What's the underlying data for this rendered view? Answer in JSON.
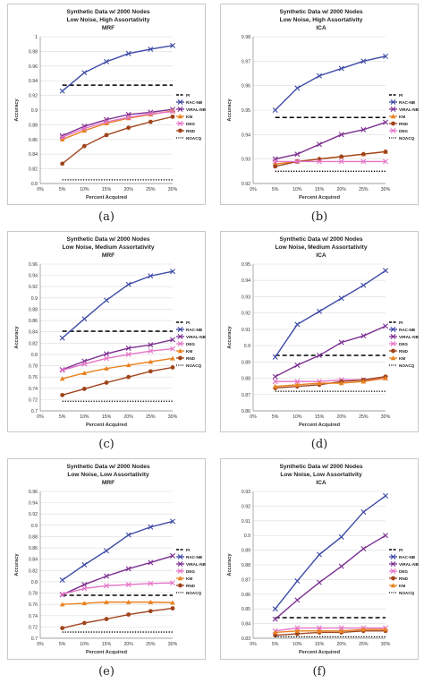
{
  "chart_data": [
    {
      "type": "line",
      "title_lines": [
        "Synthetic Data w/ 2000 Nodes",
        "Low Noise, High Assortativity",
        "MRF"
      ],
      "xlabel": "Percent Acquired",
      "ylabel": "Accuracy",
      "x_tick_labels": [
        "0%",
        "5%",
        "10%",
        "15%",
        "20%",
        "25%",
        "30%"
      ],
      "y_tick_labels": [
        "0.8",
        "0.82",
        "0.84",
        "0.86",
        "0.88",
        "0.9",
        "0.92",
        "0.94",
        "0.96",
        "0.98",
        "1"
      ],
      "ylim": [
        0.8,
        1.0
      ],
      "x": [
        5,
        10,
        15,
        20,
        25,
        30
      ],
      "caption": "(a)",
      "series": [
        {
          "name": "PI",
          "values": [
            0.934,
            0.934,
            0.934,
            0.934,
            0.934,
            0.934
          ],
          "color": "#000000",
          "style": "dash",
          "marker": "none"
        },
        {
          "name": "RAC-NB",
          "values": [
            0.926,
            0.951,
            0.966,
            0.977,
            0.983,
            0.988
          ],
          "color": "#3d49a6",
          "style": "solid",
          "marker": "x"
        },
        {
          "name": "VIRAL-NB",
          "values": [
            0.865,
            0.878,
            0.887,
            0.894,
            0.897,
            0.901
          ],
          "color": "#7b2f91",
          "style": "solid",
          "marker": "x"
        },
        {
          "name": "KM",
          "values": [
            0.86,
            0.872,
            0.882,
            0.889,
            0.894,
            0.899
          ],
          "color": "#e8821f",
          "style": "solid",
          "marker": "triangle"
        },
        {
          "name": "DEG",
          "values": [
            0.863,
            0.875,
            0.884,
            0.89,
            0.895,
            0.898
          ],
          "color": "#e574c6",
          "style": "solid",
          "marker": "x"
        },
        {
          "name": "RND",
          "values": [
            0.827,
            0.851,
            0.866,
            0.876,
            0.884,
            0.891
          ],
          "color": "#a0441c",
          "style": "solid",
          "marker": "circle"
        },
        {
          "name": "NOACQ",
          "values": [
            0.805,
            0.805,
            0.805,
            0.805,
            0.805,
            0.805
          ],
          "color": "#000000",
          "style": "dot",
          "marker": "none"
        }
      ]
    },
    {
      "type": "line",
      "title_lines": [
        "Synthetic Data w/ 2000 Nodes",
        "Low Noise, High Assortativity",
        "ICA"
      ],
      "xlabel": "Percent Acquired",
      "ylabel": "Accuracy",
      "x_tick_labels": [
        "0%",
        "5%",
        "10%",
        "15%",
        "20%",
        "25%",
        "30%"
      ],
      "y_tick_labels": [
        "0.92",
        "0.93",
        "0.94",
        "0.95",
        "0.96",
        "0.97",
        "0.98"
      ],
      "ylim": [
        0.92,
        0.98
      ],
      "x": [
        5,
        10,
        15,
        20,
        25,
        30
      ],
      "caption": "(b)",
      "series": [
        {
          "name": "PI",
          "values": [
            0.947,
            0.947,
            0.947,
            0.947,
            0.947,
            0.947
          ],
          "color": "#000000",
          "style": "dash",
          "marker": "none"
        },
        {
          "name": "RAC-NB",
          "values": [
            0.95,
            0.959,
            0.964,
            0.967,
            0.97,
            0.972
          ],
          "color": "#3d49a6",
          "style": "solid",
          "marker": "x"
        },
        {
          "name": "VIRAL-NB",
          "values": [
            0.93,
            0.932,
            0.936,
            0.94,
            0.942,
            0.945
          ],
          "color": "#7b2f91",
          "style": "solid",
          "marker": "x"
        },
        {
          "name": "KM",
          "values": [
            0.928,
            0.929,
            0.93,
            0.931,
            0.932,
            0.933
          ],
          "color": "#e8821f",
          "style": "solid",
          "marker": "triangle"
        },
        {
          "name": "RND",
          "values": [
            0.927,
            0.929,
            0.93,
            0.931,
            0.932,
            0.933
          ],
          "color": "#a0441c",
          "style": "solid",
          "marker": "circle"
        },
        {
          "name": "DEG",
          "values": [
            0.929,
            0.929,
            0.929,
            0.929,
            0.929,
            0.929
          ],
          "color": "#e574c6",
          "style": "solid",
          "marker": "x"
        },
        {
          "name": "NOACQ",
          "values": [
            0.925,
            0.925,
            0.925,
            0.925,
            0.925,
            0.925
          ],
          "color": "#000000",
          "style": "dot",
          "marker": "none"
        }
      ]
    },
    {
      "type": "line",
      "title_lines": [
        "Synthetic Data w/ 2000 Nodes",
        "Low Noise, Medium Assortativity",
        "MRF"
      ],
      "xlabel": "Percent Acquired",
      "ylabel": "Accuracy",
      "x_tick_labels": [
        "0%",
        "5%",
        "10%",
        "15%",
        "20%",
        "25%",
        "30%"
      ],
      "y_tick_labels": [
        "0.7",
        "0.72",
        "0.74",
        "0.76",
        "0.78",
        "0.8",
        "0.82",
        "0.84",
        "0.86",
        "0.88",
        "0.9",
        "0.92",
        "0.94",
        "0.96"
      ],
      "ylim": [
        0.7,
        0.96
      ],
      "x": [
        5,
        10,
        15,
        20,
        25,
        30
      ],
      "caption": "(c)",
      "series": [
        {
          "name": "PI",
          "values": [
            0.841,
            0.841,
            0.841,
            0.841,
            0.841,
            0.841
          ],
          "color": "#000000",
          "style": "dash",
          "marker": "none"
        },
        {
          "name": "RAC-NB",
          "values": [
            0.829,
            0.863,
            0.896,
            0.924,
            0.939,
            0.947
          ],
          "color": "#3d49a6",
          "style": "solid",
          "marker": "x"
        },
        {
          "name": "VIRAL-NB",
          "values": [
            0.773,
            0.788,
            0.801,
            0.811,
            0.817,
            0.826
          ],
          "color": "#7b2f91",
          "style": "solid",
          "marker": "x"
        },
        {
          "name": "DEG",
          "values": [
            0.772,
            0.783,
            0.793,
            0.8,
            0.806,
            0.81
          ],
          "color": "#e574c6",
          "style": "solid",
          "marker": "x"
        },
        {
          "name": "KM",
          "values": [
            0.757,
            0.767,
            0.775,
            0.781,
            0.787,
            0.793
          ],
          "color": "#e8821f",
          "style": "solid",
          "marker": "triangle"
        },
        {
          "name": "RND",
          "values": [
            0.728,
            0.739,
            0.75,
            0.76,
            0.77,
            0.777
          ],
          "color": "#a0441c",
          "style": "solid",
          "marker": "circle"
        },
        {
          "name": "NOACQ",
          "values": [
            0.717,
            0.717,
            0.717,
            0.717,
            0.717,
            0.717
          ],
          "color": "#000000",
          "style": "dot",
          "marker": "none"
        }
      ]
    },
    {
      "type": "line",
      "title_lines": [
        "Synthetic Data w/ 2000 Nodes",
        "Low Noise, Medium Assortativity",
        "ICA"
      ],
      "xlabel": "Percent Acquired",
      "ylabel": "Accuracy",
      "x_tick_labels": [
        "0%",
        "5%",
        "10%",
        "15%",
        "20%",
        "25%",
        "30%"
      ],
      "y_tick_labels": [
        "0.86",
        "0.87",
        "0.88",
        "0.89",
        "0.9",
        "0.91",
        "0.92",
        "0.93",
        "0.94",
        "0.95"
      ],
      "ylim": [
        0.86,
        0.95
      ],
      "x": [
        5,
        10,
        15,
        20,
        25,
        30
      ],
      "caption": "(d)",
      "series": [
        {
          "name": "PI",
          "values": [
            0.894,
            0.894,
            0.894,
            0.894,
            0.894,
            0.894
          ],
          "color": "#000000",
          "style": "dash",
          "marker": "none"
        },
        {
          "name": "RAC-NB",
          "values": [
            0.893,
            0.913,
            0.921,
            0.929,
            0.937,
            0.946
          ],
          "color": "#3d49a6",
          "style": "solid",
          "marker": "x"
        },
        {
          "name": "VIRAL-NB",
          "values": [
            0.881,
            0.888,
            0.894,
            0.902,
            0.906,
            0.912
          ],
          "color": "#7b2f91",
          "style": "solid",
          "marker": "x"
        },
        {
          "name": "DEG",
          "values": [
            0.878,
            0.878,
            0.878,
            0.879,
            0.879,
            0.88
          ],
          "color": "#e574c6",
          "style": "solid",
          "marker": "x"
        },
        {
          "name": "RND",
          "values": [
            0.874,
            0.875,
            0.876,
            0.878,
            0.879,
            0.881
          ],
          "color": "#a0441c",
          "style": "solid",
          "marker": "circle"
        },
        {
          "name": "KM",
          "values": [
            0.875,
            0.876,
            0.877,
            0.877,
            0.878,
            0.88
          ],
          "color": "#e8821f",
          "style": "solid",
          "marker": "triangle"
        },
        {
          "name": "NOACQ",
          "values": [
            0.872,
            0.872,
            0.872,
            0.872,
            0.872,
            0.872
          ],
          "color": "#000000",
          "style": "dot",
          "marker": "none"
        }
      ]
    },
    {
      "type": "line",
      "title_lines": [
        "Synthetic Data w/ 2000 Nodes",
        "Low Noise, Low Assortativity",
        "MRF"
      ],
      "xlabel": "Percent Acquired",
      "ylabel": "Accuracy",
      "x_tick_labels": [
        "0%",
        "5%",
        "10%",
        "15%",
        "20%",
        "25%",
        "30%"
      ],
      "y_tick_labels": [
        "0.7",
        "0.72",
        "0.74",
        "0.76",
        "0.78",
        "0.8",
        "0.82",
        "0.84",
        "0.86",
        "0.88",
        "0.9",
        "0.92",
        "0.94",
        "0.96"
      ],
      "ylim": [
        0.7,
        0.96
      ],
      "x": [
        5,
        10,
        15,
        20,
        25,
        30
      ],
      "caption": "(e)",
      "series": [
        {
          "name": "PI",
          "values": [
            0.776,
            0.776,
            0.776,
            0.776,
            0.776,
            0.776
          ],
          "color": "#000000",
          "style": "dash",
          "marker": "none"
        },
        {
          "name": "RAC-NB",
          "values": [
            0.803,
            0.83,
            0.855,
            0.883,
            0.897,
            0.907
          ],
          "color": "#3d49a6",
          "style": "solid",
          "marker": "x"
        },
        {
          "name": "VIRAL-NB",
          "values": [
            0.777,
            0.795,
            0.81,
            0.823,
            0.834,
            0.846
          ],
          "color": "#7b2f91",
          "style": "solid",
          "marker": "x"
        },
        {
          "name": "DEG",
          "values": [
            0.778,
            0.788,
            0.793,
            0.795,
            0.797,
            0.798
          ],
          "color": "#e574c6",
          "style": "solid",
          "marker": "x"
        },
        {
          "name": "KM",
          "values": [
            0.76,
            0.762,
            0.764,
            0.764,
            0.764,
            0.763
          ],
          "color": "#e8821f",
          "style": "solid",
          "marker": "triangle"
        },
        {
          "name": "RND",
          "values": [
            0.718,
            0.727,
            0.734,
            0.742,
            0.748,
            0.753
          ],
          "color": "#a0441c",
          "style": "solid",
          "marker": "circle"
        },
        {
          "name": "NOACQ",
          "values": [
            0.711,
            0.711,
            0.711,
            0.711,
            0.711,
            0.711
          ],
          "color": "#000000",
          "style": "dot",
          "marker": "none"
        }
      ]
    },
    {
      "type": "line",
      "title_lines": [
        "Synthetic Data w/ 2000 Nodes",
        "Low Noise, Low Assortativity",
        "ICA"
      ],
      "xlabel": "Percent Acquired",
      "ylabel": "Accuracy",
      "x_tick_labels": [
        "0%",
        "5%",
        "10%",
        "15%",
        "20%",
        "25%",
        "30%"
      ],
      "y_tick_labels": [
        "0.83",
        "0.84",
        "0.85",
        "0.86",
        "0.87",
        "0.88",
        "0.89",
        "0.9",
        "0.91",
        "0.92",
        "0.93"
      ],
      "ylim": [
        0.83,
        0.93
      ],
      "x": [
        5,
        10,
        15,
        20,
        25,
        30
      ],
      "caption": "(f)",
      "series": [
        {
          "name": "PI",
          "values": [
            0.844,
            0.844,
            0.844,
            0.844,
            0.844,
            0.844
          ],
          "color": "#000000",
          "style": "dash",
          "marker": "none"
        },
        {
          "name": "RAC-NB",
          "values": [
            0.85,
            0.869,
            0.887,
            0.899,
            0.916,
            0.927
          ],
          "color": "#3d49a6",
          "style": "solid",
          "marker": "x"
        },
        {
          "name": "VIRAL-NB",
          "values": [
            0.843,
            0.856,
            0.868,
            0.879,
            0.891,
            0.9
          ],
          "color": "#7b2f91",
          "style": "solid",
          "marker": "x"
        },
        {
          "name": "DEG",
          "values": [
            0.835,
            0.837,
            0.837,
            0.837,
            0.837,
            0.837
          ],
          "color": "#e574c6",
          "style": "solid",
          "marker": "x"
        },
        {
          "name": "RND",
          "values": [
            0.832,
            0.833,
            0.834,
            0.834,
            0.835,
            0.835
          ],
          "color": "#a0441c",
          "style": "solid",
          "marker": "circle"
        },
        {
          "name": "KM",
          "values": [
            0.834,
            0.835,
            0.835,
            0.835,
            0.836,
            0.836
          ],
          "color": "#e8821f",
          "style": "solid",
          "marker": "triangle"
        },
        {
          "name": "NOACQ",
          "values": [
            0.831,
            0.831,
            0.831,
            0.831,
            0.831,
            0.831
          ],
          "color": "#000000",
          "style": "dot",
          "marker": "none"
        }
      ]
    }
  ]
}
